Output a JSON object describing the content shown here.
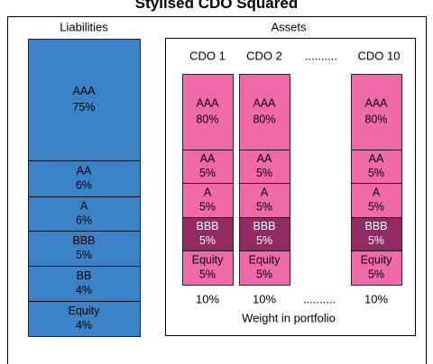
{
  "title": "Stylised CDO Squared",
  "liabilities": {
    "label": "Liabilities",
    "tranches": [
      {
        "name": "AAA",
        "pct": "75%"
      },
      {
        "name": "AA",
        "pct": "6%"
      },
      {
        "name": "A",
        "pct": "6%"
      },
      {
        "name": "BBB",
        "pct": "5%"
      },
      {
        "name": "BB",
        "pct": "4%"
      },
      {
        "name": "Equity",
        "pct": "4%"
      }
    ]
  },
  "assets": {
    "label": "Assets",
    "cdos": [
      {
        "name": "CDO 1",
        "weight": "10%",
        "tranches": [
          {
            "name": "AAA",
            "pct": "80%"
          },
          {
            "name": "AA",
            "pct": "5%"
          },
          {
            "name": "A",
            "pct": "5%"
          },
          {
            "name": "BBB",
            "pct": "5%"
          },
          {
            "name": "Equity",
            "pct": "5%"
          }
        ]
      },
      {
        "name": "CDO 2",
        "weight": "10%",
        "tranches": [
          {
            "name": "AAA",
            "pct": "80%"
          },
          {
            "name": "AA",
            "pct": "5%"
          },
          {
            "name": "A",
            "pct": "5%"
          },
          {
            "name": "BBB",
            "pct": "5%"
          },
          {
            "name": "Equity",
            "pct": "5%"
          }
        ]
      },
      {
        "name": "CDO 10",
        "weight": "10%",
        "tranches": [
          {
            "name": "AAA",
            "pct": "80%"
          },
          {
            "name": "AA",
            "pct": "5%"
          },
          {
            "name": "A",
            "pct": "5%"
          },
          {
            "name": "BBB",
            "pct": "5%"
          },
          {
            "name": "Equity",
            "pct": "5%"
          }
        ]
      }
    ],
    "header_ellipsis": "..........",
    "weight_ellipsis": "..........",
    "weight_label": "Weight in portfolio"
  }
}
